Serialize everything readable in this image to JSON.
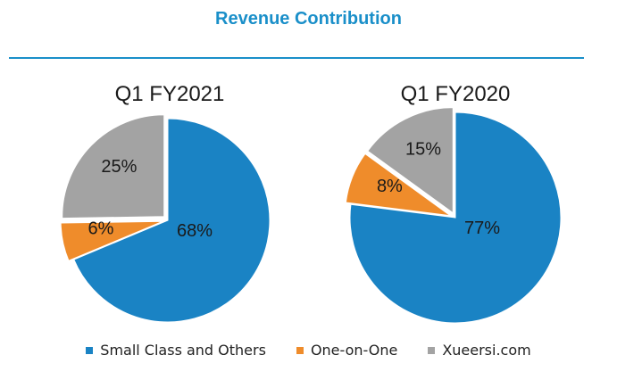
{
  "header": {
    "title": "Revenue Contribution"
  },
  "colors": {
    "accent": "#1a8fc9",
    "small_class": "#1a83c4",
    "one_on_one": "#ef8c2b",
    "xueersi": "#a3a3a3"
  },
  "chart_data": [
    {
      "type": "pie",
      "title": "Q1 FY2021",
      "categories": [
        "Small Class and Others",
        "One-on-One",
        "Xueersi.com"
      ],
      "values": [
        68,
        6,
        25
      ],
      "labels": [
        "68%",
        "6%",
        "25%"
      ]
    },
    {
      "type": "pie",
      "title": "Q1 FY2020",
      "categories": [
        "Small Class and Others",
        "One-on-One",
        "Xueersi.com"
      ],
      "values": [
        77,
        8,
        15
      ],
      "labels": [
        "77%",
        "8%",
        "15%"
      ]
    }
  ],
  "legend": {
    "items": [
      {
        "label": "Small Class and Others",
        "color": "#1a83c4"
      },
      {
        "label": "One-on-One",
        "color": "#ef8c2b"
      },
      {
        "label": "Xueersi.com",
        "color": "#a3a3a3"
      }
    ]
  }
}
